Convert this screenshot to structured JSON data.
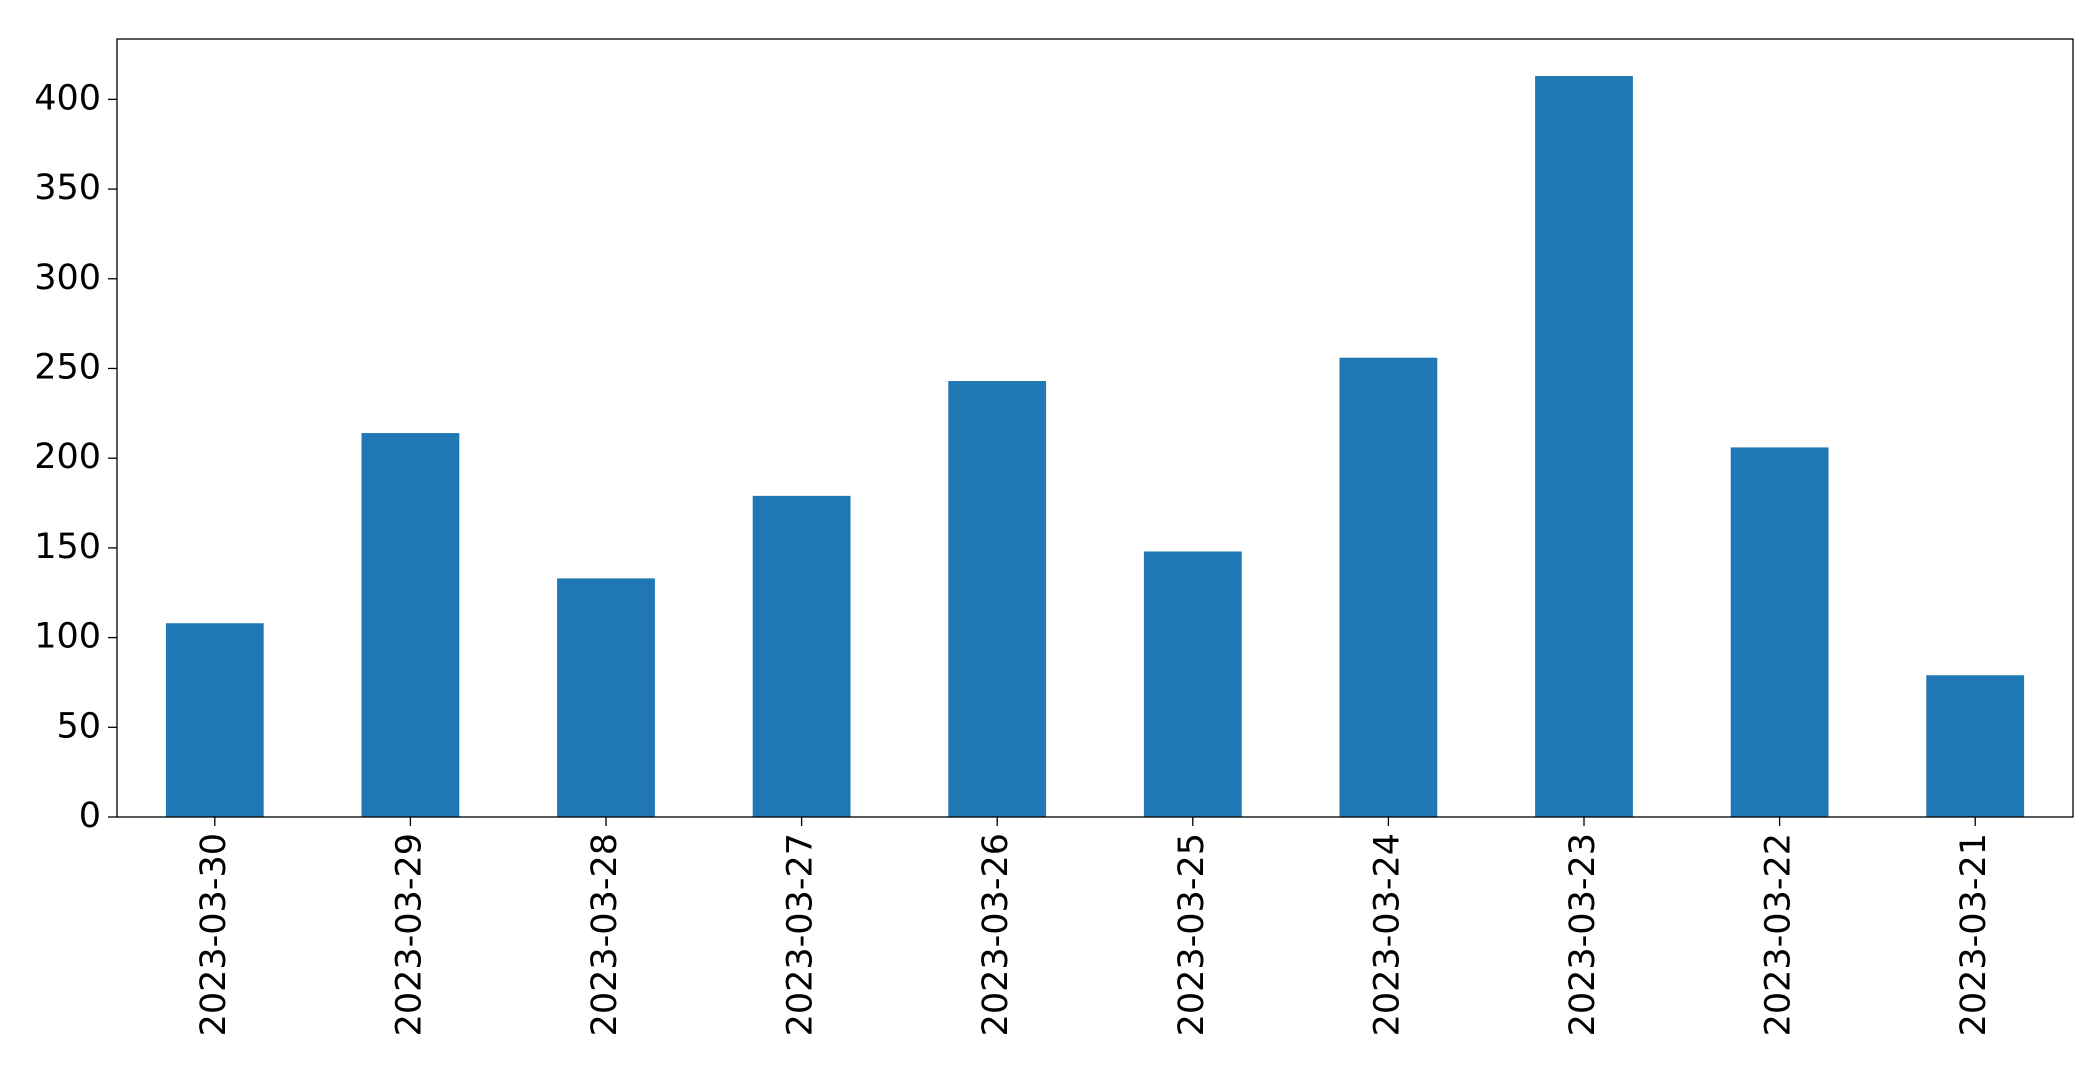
{
  "chart_data": {
    "type": "bar",
    "categories": [
      "2023-03-30",
      "2023-03-29",
      "2023-03-28",
      "2023-03-27",
      "2023-03-26",
      "2023-03-25",
      "2023-03-24",
      "2023-03-23",
      "2023-03-22",
      "2023-03-21"
    ],
    "values": [
      108,
      214,
      133,
      179,
      243,
      148,
      256,
      413,
      206,
      79
    ],
    "color": "#1f77b4",
    "ylim": [
      0,
      433.65
    ],
    "yticks": [
      0,
      50,
      100,
      150,
      200,
      250,
      300,
      350,
      400
    ],
    "grid": false
  }
}
